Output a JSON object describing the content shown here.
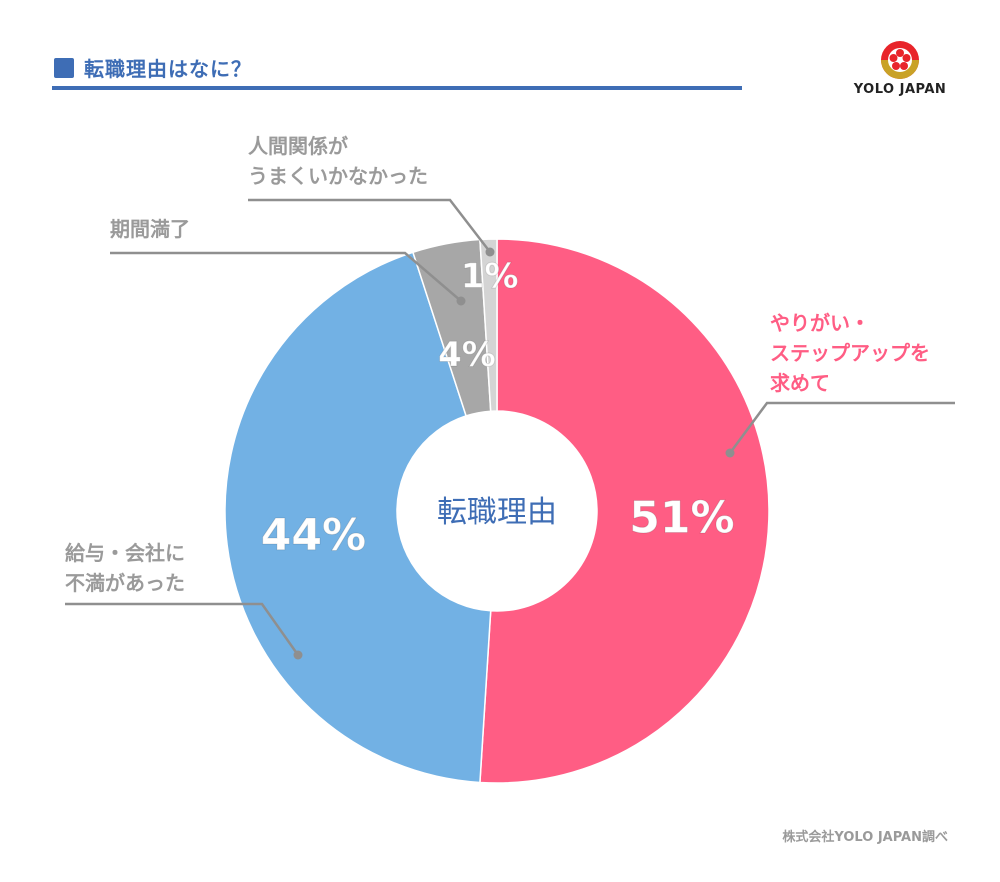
{
  "header": {
    "title": "転職理由はなに？"
  },
  "logo": {
    "text": "YOLO JAPAN"
  },
  "footer": {
    "source": "株式会社YOLO JAPAN調べ"
  },
  "colors": {
    "brand_blue": "#3e6db5",
    "pink": "#ff5d84",
    "blue": "#72b1e4",
    "gray": "#a7a7a7",
    "light_gray": "#d4d4d4",
    "label_gray": "#9a9a9a",
    "leader_gray": "#8f8f8f"
  },
  "chart_data": {
    "type": "pie",
    "variant": "donut",
    "center_label": "転職理由",
    "slices": [
      {
        "name": "やりがい・ステップアップを求めて",
        "value": 51,
        "label": "51%",
        "color": "#ff5d84",
        "callout": [
          "やりがい・",
          "ステップアップを",
          "求めて"
        ]
      },
      {
        "name": "給与・会社に不満があった",
        "value": 44,
        "label": "44%",
        "color": "#72b1e4",
        "callout": [
          "給与・会社に",
          "不満があった"
        ]
      },
      {
        "name": "期間満了",
        "value": 4,
        "label": "4%",
        "color": "#a7a7a7",
        "callout": [
          "期間満了"
        ]
      },
      {
        "name": "人間関係がうまくいかなかった",
        "value": 1,
        "label": "1%",
        "color": "#d4d4d4",
        "callout": [
          "人間関係が",
          "うまくいかなかった"
        ]
      }
    ]
  }
}
